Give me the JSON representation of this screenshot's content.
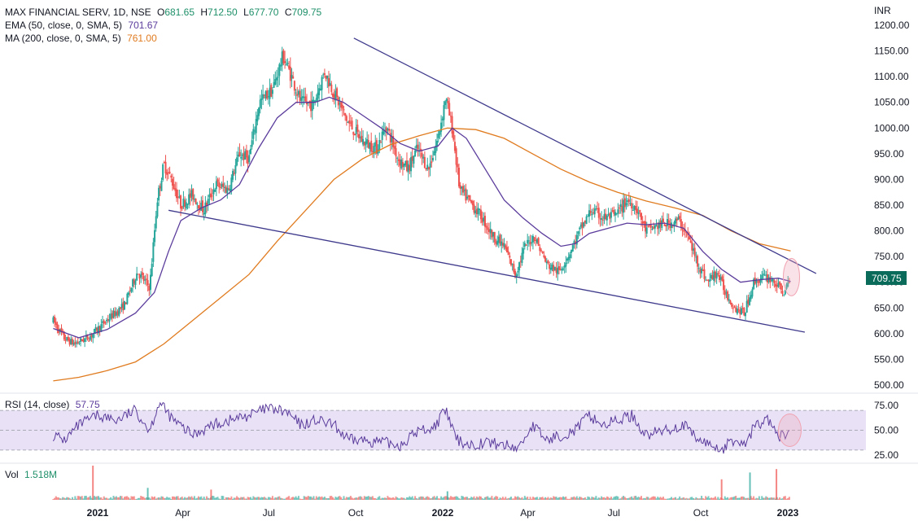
{
  "chart_data": {
    "type": "candlestick",
    "symbol_line": "MAX FINANCIAL SERV, 1D, NSE",
    "ohlc": {
      "open_label": "O",
      "open": "681.65",
      "high_label": "H",
      "high": "712.50",
      "low_label": "L",
      "low": "677.70",
      "close_label": "C",
      "close": "709.75"
    },
    "indicators": [
      {
        "name": "EMA (50, close, 0, SMA, 5)",
        "value": "701.67",
        "color": "#5b3c9c"
      },
      {
        "name": "MA (200, close, 0, SMA, 5)",
        "value": "761.00",
        "color": "#e07b1f"
      }
    ],
    "currency": "INR",
    "price_axis": {
      "ticks": [
        "1200.00",
        "1150.00",
        "1100.00",
        "1050.00",
        "1000.00",
        "950.00",
        "900.00",
        "850.00",
        "800.00",
        "750.00",
        "700.00",
        "650.00",
        "600.00",
        "550.00",
        "500.00"
      ],
      "range": [
        490,
        1215
      ]
    },
    "last_price": "709.75",
    "x_axis": {
      "labels": [
        {
          "text": "2021",
          "bold": true,
          "day": 0
        },
        {
          "text": "Apr",
          "bold": false,
          "day": 90
        },
        {
          "text": "Jul",
          "bold": false,
          "day": 181
        },
        {
          "text": "Oct",
          "bold": false,
          "day": 273
        },
        {
          "text": "2022",
          "bold": true,
          "day": 365
        },
        {
          "text": "Apr",
          "bold": false,
          "day": 455
        },
        {
          "text": "Jul",
          "bold": false,
          "day": 546
        },
        {
          "text": "Oct",
          "bold": false,
          "day": 638
        },
        {
          "text": "2023",
          "bold": true,
          "day": 730
        }
      ]
    },
    "price_anchors": [
      {
        "day": -47,
        "value": 625
      },
      {
        "day": -35,
        "value": 590
      },
      {
        "day": -24,
        "value": 580
      },
      {
        "day": -8,
        "value": 595
      },
      {
        "day": 12,
        "value": 630
      },
      {
        "day": 28,
        "value": 655
      },
      {
        "day": 42,
        "value": 720
      },
      {
        "day": 55,
        "value": 690
      },
      {
        "day": 63,
        "value": 860
      },
      {
        "day": 70,
        "value": 930
      },
      {
        "day": 78,
        "value": 900
      },
      {
        "day": 88,
        "value": 850
      },
      {
        "day": 100,
        "value": 870
      },
      {
        "day": 112,
        "value": 840
      },
      {
        "day": 125,
        "value": 890
      },
      {
        "day": 138,
        "value": 880
      },
      {
        "day": 150,
        "value": 950
      },
      {
        "day": 160,
        "value": 940
      },
      {
        "day": 171,
        "value": 1050
      },
      {
        "day": 185,
        "value": 1075
      },
      {
        "day": 196,
        "value": 1140
      },
      {
        "day": 205,
        "value": 1100
      },
      {
        "day": 215,
        "value": 1050
      },
      {
        "day": 228,
        "value": 1045
      },
      {
        "day": 240,
        "value": 1110
      },
      {
        "day": 252,
        "value": 1060
      },
      {
        "day": 265,
        "value": 1010
      },
      {
        "day": 280,
        "value": 975
      },
      {
        "day": 295,
        "value": 960
      },
      {
        "day": 305,
        "value": 1005
      },
      {
        "day": 318,
        "value": 940
      },
      {
        "day": 328,
        "value": 920
      },
      {
        "day": 338,
        "value": 960
      },
      {
        "day": 350,
        "value": 920
      },
      {
        "day": 360,
        "value": 980
      },
      {
        "day": 368,
        "value": 1060
      },
      {
        "day": 375,
        "value": 1000
      },
      {
        "day": 383,
        "value": 880
      },
      {
        "day": 392,
        "value": 860
      },
      {
        "day": 405,
        "value": 830
      },
      {
        "day": 418,
        "value": 790
      },
      {
        "day": 430,
        "value": 770
      },
      {
        "day": 442,
        "value": 715
      },
      {
        "day": 452,
        "value": 770
      },
      {
        "day": 462,
        "value": 790
      },
      {
        "day": 475,
        "value": 735
      },
      {
        "day": 488,
        "value": 720
      },
      {
        "day": 500,
        "value": 760
      },
      {
        "day": 510,
        "value": 800
      },
      {
        "day": 522,
        "value": 840
      },
      {
        "day": 535,
        "value": 825
      },
      {
        "day": 548,
        "value": 830
      },
      {
        "day": 560,
        "value": 860
      },
      {
        "day": 570,
        "value": 845
      },
      {
        "day": 580,
        "value": 800
      },
      {
        "day": 592,
        "value": 810
      },
      {
        "day": 605,
        "value": 815
      },
      {
        "day": 615,
        "value": 820
      },
      {
        "day": 624,
        "value": 790
      },
      {
        "day": 634,
        "value": 740
      },
      {
        "day": 645,
        "value": 700
      },
      {
        "day": 655,
        "value": 720
      },
      {
        "day": 664,
        "value": 680
      },
      {
        "day": 674,
        "value": 650
      },
      {
        "day": 684,
        "value": 640
      },
      {
        "day": 694,
        "value": 700
      },
      {
        "day": 704,
        "value": 710
      },
      {
        "day": 714,
        "value": 705
      },
      {
        "day": 720,
        "value": 690
      },
      {
        "day": 727,
        "value": 680
      },
      {
        "day": 733,
        "value": 709.75
      }
    ],
    "ema50": [
      {
        "day": -47,
        "value": 610
      },
      {
        "day": -20,
        "value": 592
      },
      {
        "day": 10,
        "value": 608
      },
      {
        "day": 40,
        "value": 640
      },
      {
        "day": 60,
        "value": 680
      },
      {
        "day": 75,
        "value": 760
      },
      {
        "day": 88,
        "value": 820
      },
      {
        "day": 110,
        "value": 845
      },
      {
        "day": 130,
        "value": 860
      },
      {
        "day": 150,
        "value": 890
      },
      {
        "day": 170,
        "value": 960
      },
      {
        "day": 190,
        "value": 1020
      },
      {
        "day": 210,
        "value": 1050
      },
      {
        "day": 230,
        "value": 1050
      },
      {
        "day": 245,
        "value": 1060
      },
      {
        "day": 260,
        "value": 1050
      },
      {
        "day": 280,
        "value": 1025
      },
      {
        "day": 300,
        "value": 1000
      },
      {
        "day": 320,
        "value": 970
      },
      {
        "day": 340,
        "value": 955
      },
      {
        "day": 360,
        "value": 965
      },
      {
        "day": 375,
        "value": 1000
      },
      {
        "day": 390,
        "value": 980
      },
      {
        "day": 410,
        "value": 920
      },
      {
        "day": 430,
        "value": 860
      },
      {
        "day": 450,
        "value": 825
      },
      {
        "day": 470,
        "value": 795
      },
      {
        "day": 490,
        "value": 770
      },
      {
        "day": 505,
        "value": 775
      },
      {
        "day": 520,
        "value": 795
      },
      {
        "day": 540,
        "value": 805
      },
      {
        "day": 560,
        "value": 815
      },
      {
        "day": 580,
        "value": 812
      },
      {
        "day": 600,
        "value": 815
      },
      {
        "day": 620,
        "value": 805
      },
      {
        "day": 640,
        "value": 760
      },
      {
        "day": 660,
        "value": 725
      },
      {
        "day": 680,
        "value": 700
      },
      {
        "day": 700,
        "value": 705
      },
      {
        "day": 720,
        "value": 708
      },
      {
        "day": 733,
        "value": 701.67
      }
    ],
    "ma200": [
      {
        "day": -47,
        "value": 508
      },
      {
        "day": -20,
        "value": 515
      },
      {
        "day": 10,
        "value": 528
      },
      {
        "day": 40,
        "value": 545
      },
      {
        "day": 70,
        "value": 580
      },
      {
        "day": 100,
        "value": 625
      },
      {
        "day": 130,
        "value": 670
      },
      {
        "day": 160,
        "value": 715
      },
      {
        "day": 190,
        "value": 780
      },
      {
        "day": 220,
        "value": 840
      },
      {
        "day": 250,
        "value": 900
      },
      {
        "day": 280,
        "value": 940
      },
      {
        "day": 310,
        "value": 968
      },
      {
        "day": 340,
        "value": 985
      },
      {
        "day": 370,
        "value": 1000
      },
      {
        "day": 400,
        "value": 997
      },
      {
        "day": 430,
        "value": 980
      },
      {
        "day": 460,
        "value": 950
      },
      {
        "day": 490,
        "value": 920
      },
      {
        "day": 520,
        "value": 895
      },
      {
        "day": 550,
        "value": 875
      },
      {
        "day": 580,
        "value": 858
      },
      {
        "day": 610,
        "value": 845
      },
      {
        "day": 640,
        "value": 830
      },
      {
        "day": 670,
        "value": 800
      },
      {
        "day": 700,
        "value": 775
      },
      {
        "day": 733,
        "value": 761
      }
    ],
    "trendlines": [
      {
        "from": {
          "day": 271,
          "value": 1175
        },
        "to": {
          "day": 760,
          "value": 717
        }
      },
      {
        "from": {
          "day": 75,
          "value": 840
        },
        "to": {
          "day": 748,
          "value": 603
        }
      }
    ],
    "rsi": {
      "label": "RSI (14, close)",
      "value": "57.75",
      "ticks": [
        "75.00",
        "50.00",
        "25.00"
      ],
      "upper": 70,
      "lower": 30,
      "range": [
        20,
        80
      ],
      "anchors": [
        {
          "day": -47,
          "value": 45
        },
        {
          "day": -35,
          "value": 40
        },
        {
          "day": -20,
          "value": 55
        },
        {
          "day": 0,
          "value": 65
        },
        {
          "day": 20,
          "value": 60
        },
        {
          "day": 40,
          "value": 70
        },
        {
          "day": 55,
          "value": 50
        },
        {
          "day": 65,
          "value": 78
        },
        {
          "day": 80,
          "value": 60
        },
        {
          "day": 100,
          "value": 45
        },
        {
          "day": 120,
          "value": 55
        },
        {
          "day": 140,
          "value": 60
        },
        {
          "day": 160,
          "value": 65
        },
        {
          "day": 180,
          "value": 72
        },
        {
          "day": 200,
          "value": 68
        },
        {
          "day": 215,
          "value": 55
        },
        {
          "day": 230,
          "value": 60
        },
        {
          "day": 250,
          "value": 55
        },
        {
          "day": 265,
          "value": 40
        },
        {
          "day": 280,
          "value": 40
        },
        {
          "day": 300,
          "value": 38
        },
        {
          "day": 320,
          "value": 35
        },
        {
          "day": 340,
          "value": 50
        },
        {
          "day": 355,
          "value": 52
        },
        {
          "day": 368,
          "value": 70
        },
        {
          "day": 380,
          "value": 40
        },
        {
          "day": 395,
          "value": 35
        },
        {
          "day": 410,
          "value": 38
        },
        {
          "day": 430,
          "value": 35
        },
        {
          "day": 445,
          "value": 32
        },
        {
          "day": 460,
          "value": 55
        },
        {
          "day": 475,
          "value": 40
        },
        {
          "day": 490,
          "value": 45
        },
        {
          "day": 505,
          "value": 50
        },
        {
          "day": 520,
          "value": 65
        },
        {
          "day": 535,
          "value": 55
        },
        {
          "day": 550,
          "value": 60
        },
        {
          "day": 565,
          "value": 65
        },
        {
          "day": 580,
          "value": 45
        },
        {
          "day": 600,
          "value": 50
        },
        {
          "day": 620,
          "value": 55
        },
        {
          "day": 635,
          "value": 40
        },
        {
          "day": 650,
          "value": 35
        },
        {
          "day": 660,
          "value": 30
        },
        {
          "day": 672,
          "value": 40
        },
        {
          "day": 685,
          "value": 35
        },
        {
          "day": 695,
          "value": 55
        },
        {
          "day": 710,
          "value": 60
        },
        {
          "day": 720,
          "value": 42
        },
        {
          "day": 727,
          "value": 45
        },
        {
          "day": 733,
          "value": 57.75
        }
      ]
    },
    "volume": {
      "label": "Vol",
      "value": "1.518M",
      "spikes": [
        {
          "day": -5,
          "value": 1.0
        },
        {
          "day": 53,
          "value": 0.35
        },
        {
          "day": 120,
          "value": 0.3
        },
        {
          "day": 370,
          "value": 0.25
        },
        {
          "day": 660,
          "value": 0.6
        },
        {
          "day": 690,
          "value": 0.8
        },
        {
          "day": 718,
          "value": 0.9
        }
      ]
    },
    "colors": {
      "up": "#26a69a",
      "down": "#ef5350",
      "ema": "#5b3c9c",
      "ma": "#e07b1f",
      "trendline": "#3f3a8c",
      "rsi": "#5b3c9c",
      "rsi_band": "#e9e2f7",
      "highlight": "#f0a3b2",
      "price_tag": "#0b6b5a"
    }
  }
}
